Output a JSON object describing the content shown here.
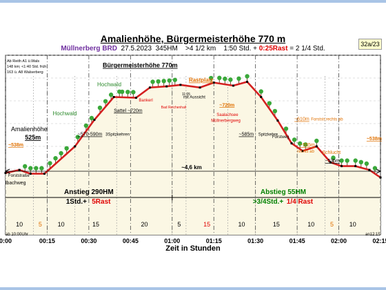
{
  "title": "Amalienhöhe, Bürgermeisterhöhe 770 m",
  "subtitle": {
    "route": "Müllnerberg BRD",
    "date": "27.5.2023",
    "hm": "345HM",
    "dist": ">4 1/2 km",
    "time": "1:50 Std. +",
    "rest": "0:25Rast",
    "total": "= 2 1/4 Std."
  },
  "badge": "32a/23",
  "notes": [
    "Ab Reith A1 ü.Wals",
    "148 km; <1:40 Std. früh",
    "163 ü. A8 Walserberg"
  ],
  "xlabel": "Zeit in Stunden",
  "chart_data": {
    "type": "area",
    "x_ticks": [
      "0:00",
      "00:15",
      "00:30",
      "00:45",
      "01:00",
      "01:15",
      "01:30",
      "01:45",
      "02:00",
      "02:15"
    ],
    "x_range_min": [
      0,
      135
    ],
    "xlabel": "Zeit in Stunden",
    "profile": [
      {
        "t": 0,
        "h": 530
      },
      {
        "t": 5,
        "h": 538
      },
      {
        "t": 9,
        "h": 528
      },
      {
        "t": 14,
        "h": 528
      },
      {
        "t": 25,
        "h": 600
      },
      {
        "t": 32,
        "h": 670
      },
      {
        "t": 39,
        "h": 730
      },
      {
        "t": 47,
        "h": 728
      },
      {
        "t": 52,
        "h": 755
      },
      {
        "t": 58,
        "h": 758
      },
      {
        "t": 63,
        "h": 762
      },
      {
        "t": 70,
        "h": 755
      },
      {
        "t": 75,
        "h": 768
      },
      {
        "t": 82,
        "h": 760
      },
      {
        "t": 87,
        "h": 770
      },
      {
        "t": 92,
        "h": 730
      },
      {
        "t": 98,
        "h": 668
      },
      {
        "t": 103,
        "h": 608
      },
      {
        "t": 107,
        "h": 588
      },
      {
        "t": 112,
        "h": 600
      },
      {
        "t": 117,
        "h": 558
      },
      {
        "t": 121,
        "h": 548
      },
      {
        "t": 126,
        "h": 548
      },
      {
        "t": 131,
        "h": 538
      },
      {
        "t": 135,
        "h": 518
      }
    ],
    "segments": [
      {
        "label": "10",
        "color": "#000000",
        "t": 5
      },
      {
        "label": "5",
        "color": "#e07000",
        "t": 12.5
      },
      {
        "label": "10",
        "color": "#000000",
        "t": 20
      },
      {
        "label": "15",
        "color": "#000000",
        "t": 32.5
      },
      {
        "label": "20",
        "color": "#000000",
        "t": 50
      },
      {
        "label": "5",
        "color": "#000000",
        "t": 62.5
      },
      {
        "label": "15",
        "color": "#e00000",
        "t": 72.5
      },
      {
        "label": "10",
        "color": "#000000",
        "t": 85
      },
      {
        "label": "15",
        "color": "#000000",
        "t": 97.5
      },
      {
        "label": "10",
        "color": "#000000",
        "t": 110
      },
      {
        "label": "5",
        "color": "#e07000",
        "t": 117.5
      },
      {
        "label": "10",
        "color": "#000000",
        "t": 125
      }
    ],
    "segment_bounds": [
      10,
      15,
      25,
      40,
      60,
      65,
      80,
      90,
      105,
      115,
      120
    ],
    "annotations": [
      {
        "text": "~538m",
        "t": 1,
        "h": 600,
        "color": "#e07000",
        "size": 7,
        "bold": true,
        "under": true
      },
      {
        "text": "Amalienhöhe",
        "t": 2,
        "h": 640,
        "color": "#000000",
        "size": 9,
        "bold": false
      },
      {
        "text": "525m",
        "t": 7,
        "h": 618,
        "color": "#000000",
        "size": 9,
        "bold": true,
        "under": true
      },
      {
        "text": "Forststraße",
        "t": 1,
        "h": 520,
        "color": "#000000",
        "size": 6
      },
      {
        "text": "Hochwald",
        "t": 17,
        "h": 682,
        "color": "#2e8b2e",
        "size": 8
      },
      {
        "text": "~570-590m",
        "t": 26,
        "h": 628,
        "color": "#000000",
        "size": 7,
        "under": true
      },
      {
        "text": "3Spitzkehren",
        "t": 36,
        "h": 628,
        "color": "#000000",
        "size": 6
      },
      {
        "text": "Sattel ~720m",
        "t": 39,
        "h": 690,
        "color": "#000000",
        "size": 7,
        "under": true
      },
      {
        "text": "Hochwald",
        "t": 33,
        "h": 758,
        "color": "#2e8b2e",
        "size": 8
      },
      {
        "text": "Bankerl",
        "t": 48,
        "h": 718,
        "color": "#e00000",
        "size": 6
      },
      {
        "text": "Bürgermeisterhöhe 770m",
        "t": 35,
        "h": 808,
        "color": "#000000",
        "size": 9,
        "bold": true,
        "under": true
      },
      {
        "text": "Bad Reichenhall",
        "t": 56,
        "h": 700,
        "color": "#e00000",
        "size": 5
      },
      {
        "text": "Rastplatz",
        "t": 66,
        "h": 770,
        "color": "#e07000",
        "size": 8,
        "bold": true,
        "under": true
      },
      {
        "text": "mit Aussicht",
        "t": 64,
        "h": 726,
        "color": "#000000",
        "size": 6
      },
      {
        "text": "~720m",
        "t": 77,
        "h": 705,
        "color": "#e07000",
        "size": 7,
        "bold": true,
        "under": true
      },
      {
        "text": "Saalachsee",
        "t": 76,
        "h": 680,
        "color": "#e00000",
        "size": 6
      },
      {
        "text": "Müllnerbergweg",
        "t": 74,
        "h": 665,
        "color": "#e00000",
        "size": 6
      },
      {
        "text": "~585m",
        "t": 84,
        "h": 628,
        "color": "#000000",
        "size": 7,
        "under": true
      },
      {
        "text": "Spitzkehre",
        "t": 91,
        "h": 628,
        "color": "#000000",
        "size": 6
      },
      {
        "text": "~610m",
        "t": 104,
        "h": 668,
        "color": "#e07000",
        "size": 7,
        "under": true
      },
      {
        "text": "Forststr.rechts ab",
        "t": 110,
        "h": 668,
        "color": "#e07000",
        "size": 6
      },
      {
        "text": "Forstweg",
        "t": 96,
        "h": 622,
        "color": "#000000",
        "size": 6
      },
      {
        "text": "~555m",
        "t": 106,
        "h": 600,
        "color": "#e07000",
        "size": 7,
        "under": true
      },
      {
        "text": "rechts ab",
        "t": 105,
        "h": 584,
        "color": "#e07000",
        "size": 6
      },
      {
        "text": "Schlucht",
        "t": 114,
        "h": 580,
        "color": "#e07000",
        "size": 7
      },
      {
        "text": "~535m",
        "t": 115,
        "h": 558,
        "color": "#000000",
        "size": 7,
        "under": true
      },
      {
        "text": "~538m",
        "t": 130,
        "h": 616,
        "color": "#e07000",
        "size": 7,
        "bold": true,
        "under": true
      },
      {
        "text": "11:05",
        "t": 63.5,
        "h": 735,
        "color": "#000000",
        "size": 5
      },
      {
        "text": "lbachweg",
        "t": 0,
        "h": 500,
        "color": "#000000",
        "size": 7
      }
    ],
    "distance": {
      "text": "~4,6 km",
      "t": 67
    },
    "ascent": {
      "title": "Anstieg 290HM",
      "time": "1Std.+",
      "rest": "5Rast",
      "t": 30
    },
    "descent": {
      "title": "Abstieg 55HM",
      "time": ">3/4Std.+",
      "rest": "1/4 Rast",
      "t": 100
    },
    "x_start_label": "ab 10:00Uhr",
    "x_end_label": "an12:15",
    "trees_t": [
      7,
      9,
      11,
      13,
      16,
      18,
      20,
      22,
      26,
      29,
      31,
      34,
      36,
      38,
      41,
      42,
      44,
      46,
      53,
      55,
      57,
      59,
      61,
      74,
      77,
      79,
      81,
      84,
      87,
      92,
      95,
      97,
      101,
      104,
      106,
      108,
      112,
      118,
      121,
      123,
      126,
      128,
      130,
      133
    ]
  }
}
